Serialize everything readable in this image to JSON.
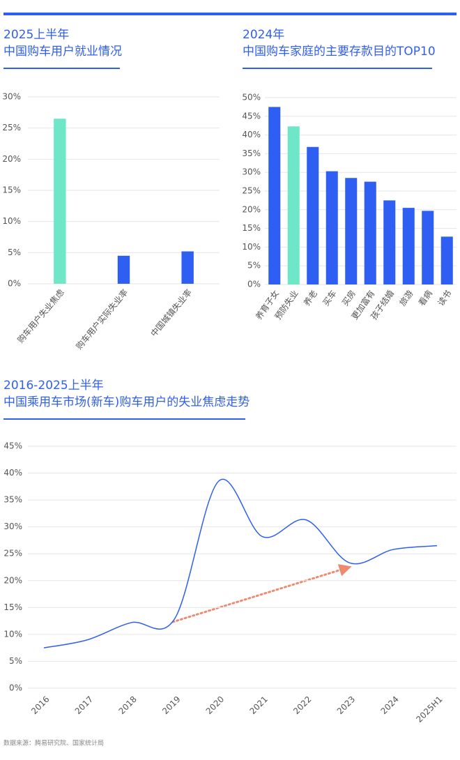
{
  "chart_data": [
    {
      "type": "bar",
      "title": "2025上半年",
      "subtitle": "中国购车用户就业情况",
      "categories": [
        "购车用户失业焦虑",
        "购车用户实际失业率",
        "中国城镇失业率"
      ],
      "values": [
        26.5,
        4.5,
        5.2
      ],
      "colors": [
        "#6ee6c8",
        "#2f5ef2",
        "#2f5ef2"
      ],
      "ylim": [
        0,
        30
      ],
      "yticks": [
        {
          "value": 0,
          "label": "0%"
        },
        {
          "value": 5,
          "label": "5%"
        },
        {
          "value": 10,
          "label": "10%"
        },
        {
          "value": 15,
          "label": "15%"
        },
        {
          "value": 20,
          "label": "20%"
        },
        {
          "value": 25,
          "label": "25%"
        },
        {
          "value": 30,
          "label": "30%"
        }
      ],
      "grid": true
    },
    {
      "type": "bar",
      "title": "2024年",
      "subtitle": "中国购车家庭的主要存款目的TOP10",
      "categories": [
        "养育子女",
        "预防失业",
        "养老",
        "买车",
        "买房",
        "更加富有",
        "孩子结婚",
        "旅游",
        "看病",
        "读书"
      ],
      "values": [
        47.5,
        42.3,
        36.8,
        30.3,
        28.5,
        27.5,
        22.5,
        20.5,
        19.7,
        12.8
      ],
      "colors": [
        "#2f5ef2",
        "#6ee6c8",
        "#2f5ef2",
        "#2f5ef2",
        "#2f5ef2",
        "#2f5ef2",
        "#2f5ef2",
        "#2f5ef2",
        "#2f5ef2",
        "#2f5ef2"
      ],
      "ylim": [
        0,
        50
      ],
      "yticks": [
        {
          "value": 0,
          "label": "0%"
        },
        {
          "value": 5,
          "label": "5%"
        },
        {
          "value": 10,
          "label": "10%"
        },
        {
          "value": 15,
          "label": "15%"
        },
        {
          "value": 20,
          "label": "20%"
        },
        {
          "value": 25,
          "label": "25%"
        },
        {
          "value": 30,
          "label": "30%"
        },
        {
          "value": 35,
          "label": "35%"
        },
        {
          "value": 40,
          "label": "40%"
        },
        {
          "value": 45,
          "label": "45%"
        },
        {
          "value": 50,
          "label": "50%"
        }
      ],
      "grid": true
    },
    {
      "type": "line",
      "title": "2016-2025上半年",
      "subtitle": "中国乘用车市场(新车)购车用户的失业焦虑走势",
      "categories": [
        "2016",
        "2017",
        "2018",
        "2019",
        "2020",
        "2021",
        "2022",
        "2023",
        "2024",
        "2025H1"
      ],
      "values": [
        7.5,
        9,
        12.2,
        13,
        38.5,
        28.2,
        31.3,
        23.3,
        25.8,
        26.5
      ],
      "color": "#2f5ef2",
      "ylim": [
        0,
        45
      ],
      "yticks": [
        {
          "value": 0,
          "label": "0%"
        },
        {
          "value": 5,
          "label": "5%"
        },
        {
          "value": 10,
          "label": "10%"
        },
        {
          "value": 15,
          "label": "15%"
        },
        {
          "value": 20,
          "label": "20%"
        },
        {
          "value": 25,
          "label": "25%"
        },
        {
          "value": 30,
          "label": "30%"
        },
        {
          "value": 35,
          "label": "35%"
        },
        {
          "value": 40,
          "label": "40%"
        },
        {
          "value": 45,
          "label": "45%"
        }
      ],
      "grid": true
    }
  ],
  "source": "数据来源：腾易研究院、国家统计局"
}
